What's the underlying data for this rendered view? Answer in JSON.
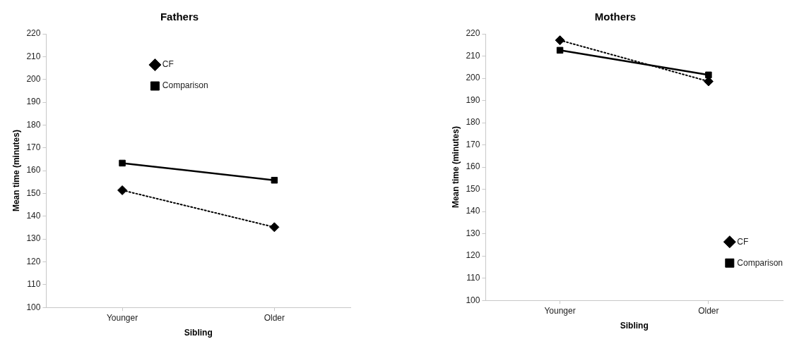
{
  "chart_data": [
    {
      "type": "line",
      "title": "Fathers",
      "xlabel": "Sibling",
      "ylabel": "Mean time (minutes)",
      "categories": [
        "Younger",
        "Older"
      ],
      "ylim": [
        100,
        220
      ],
      "yticks": [
        100,
        110,
        120,
        130,
        140,
        150,
        160,
        170,
        180,
        190,
        200,
        210,
        220
      ],
      "grid": false,
      "legend": "top",
      "series": [
        {
          "name": "CF",
          "color": "#000000",
          "values": [
            151.4,
            135.2
          ],
          "marker": "diamond",
          "line_style": "dotted"
        },
        {
          "name": "Comparison",
          "color": "#000000",
          "values": [
            163.3,
            155.8
          ],
          "marker": "square",
          "line_style": "solid"
        }
      ]
    },
    {
      "type": "line",
      "title": "Mothers",
      "xlabel": "Sibling",
      "ylabel": "Mean time (minutes)",
      "categories": [
        "Younger",
        "Older"
      ],
      "ylim": [
        100,
        220
      ],
      "yticks": [
        100,
        110,
        120,
        130,
        140,
        150,
        160,
        170,
        180,
        190,
        200,
        210,
        220
      ],
      "grid": false,
      "legend": "bottom right",
      "series": [
        {
          "name": "CF",
          "color": "#000000",
          "values": [
            217.1,
            198.6
          ],
          "marker": "diamond",
          "line_style": "dotted"
        },
        {
          "name": "Comparison",
          "color": "#000000",
          "values": [
            212.6,
            201.5
          ],
          "marker": "square",
          "line_style": "solid"
        }
      ]
    }
  ]
}
